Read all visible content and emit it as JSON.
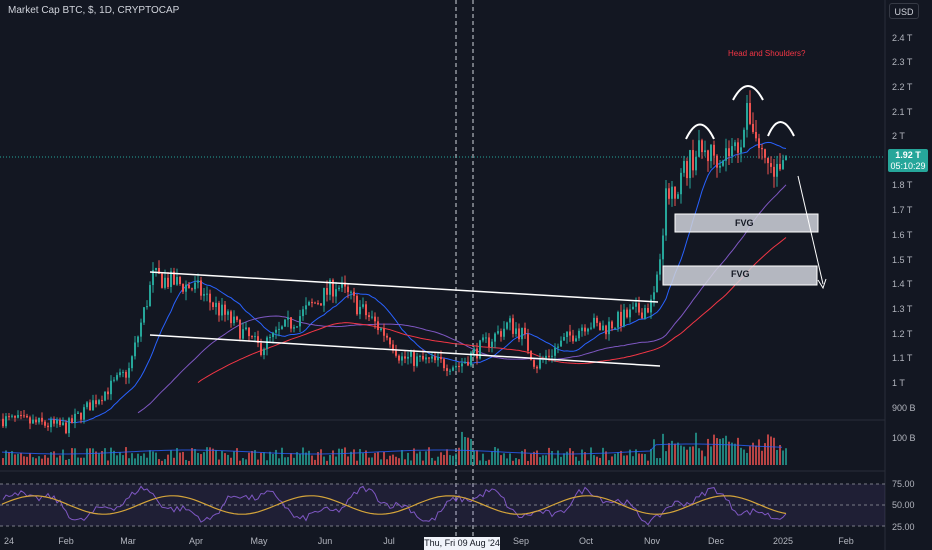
{
  "header": {
    "title": "Market Cap BTC, $, 1D, CRYPTOCAP",
    "currency_button": "USD"
  },
  "price_label": {
    "value": "1.92 T",
    "countdown": "05:10:29"
  },
  "crosshair_label": "Thu, Fri 09 Aug '24",
  "annotations": {
    "pattern": "Head and Shoulders?",
    "fvg_upper": "FVG",
    "fvg_lower": "FVG"
  },
  "colors": {
    "up": "#26a69a",
    "down": "#ef5350",
    "ma_blue": "#2962ff",
    "ma_purple": "#7e57c2",
    "ma_red": "#f23645",
    "rsi": "#d4a43a",
    "bg": "#131722"
  },
  "chart_data": [
    {
      "type": "candlestick",
      "title": "Market Cap BTC, $, 1D, CRYPTOCAP",
      "scale": "log",
      "y_ticks": [
        "2.4 T",
        "2.3 T",
        "2.2 T",
        "2.1 T",
        "2 T",
        "1.8 T",
        "1.7 T",
        "1.6 T",
        "1.5 T",
        "1.4 T",
        "1.3 T",
        "1.2 T",
        "1.1 T",
        "1 T",
        "900 B"
      ],
      "x_ticks": [
        "24",
        "Feb",
        "Mar",
        "Apr",
        "May",
        "Jun",
        "Jul",
        "Sep",
        "Oct",
        "Nov",
        "Dec",
        "2025",
        "Feb"
      ],
      "x": [
        "Jan",
        "Feb 1",
        "Mar 1",
        "Mar 14",
        "Apr 1",
        "May 1",
        "Jun 1",
        "Jun 7",
        "Jul 1",
        "Jul 5",
        "Aug 5",
        "Aug 25",
        "Sep 1",
        "Sep 6",
        "Oct 1",
        "Oct 10",
        "Nov 1",
        "Nov 12",
        "Nov 22",
        "Dec 1",
        "Dec 10",
        "Dec 17",
        "Dec 23",
        "Dec 27",
        "Jan 2"
      ],
      "y_T": [
        0.86,
        0.83,
        1.05,
        1.43,
        1.38,
        1.14,
        1.36,
        1.4,
        1.18,
        1.1,
        1.07,
        1.24,
        1.2,
        1.07,
        1.25,
        1.22,
        1.32,
        1.74,
        1.93,
        1.92,
        1.95,
        2.1,
        1.93,
        1.84,
        1.92
      ],
      "series": [
        {
          "name": "",
          "type": "moving average (blue)"
        },
        {
          "name": "",
          "type": "moving average (purple)"
        },
        {
          "name": "",
          "type": "moving average (red)"
        }
      ]
    },
    {
      "type": "bar",
      "panel": "volume",
      "y_ticks": [
        "100 B"
      ]
    },
    {
      "type": "line",
      "panel": "oscillator",
      "y_ticks": [
        "75.00",
        "50.00",
        "25.00"
      ],
      "ylim": [
        20,
        85
      ]
    }
  ]
}
